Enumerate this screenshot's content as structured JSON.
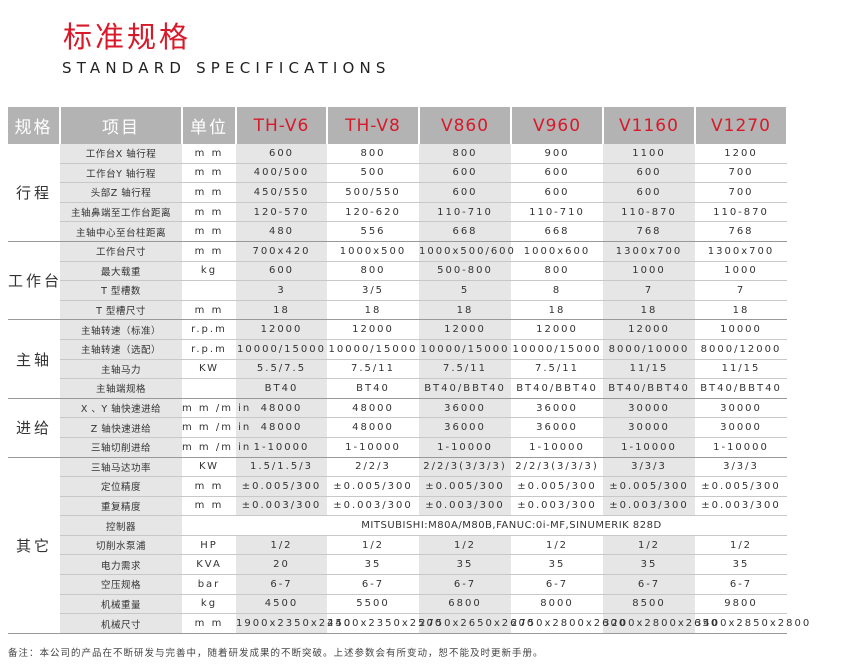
{
  "title": "标准规格",
  "subtitle": "STANDARD SPECIFICATIONS",
  "headers": {
    "group": "规格",
    "item": "项目",
    "unit": "单位",
    "models": [
      "TH-V6",
      "TH-V8",
      "V860",
      "V960",
      "V1160",
      "V1270"
    ]
  },
  "colors": {
    "accent": "#d7192a",
    "header_bg": "#b3b3b3",
    "shade": "#e6e6e6"
  },
  "groups": [
    {
      "name": "行程",
      "rows": [
        {
          "item": "工作台X 轴行程",
          "unit": "m m",
          "values": [
            "600",
            "800",
            "800",
            "900",
            "1100",
            "1200"
          ]
        },
        {
          "item": "工作台Y 轴行程",
          "unit": "m m",
          "values": [
            "400/500",
            "500",
            "600",
            "600",
            "600",
            "700"
          ]
        },
        {
          "item": "头部Z 轴行程",
          "unit": "m m",
          "values": [
            "450/550",
            "500/550",
            "600",
            "600",
            "600",
            "700"
          ]
        },
        {
          "item": "主轴鼻端至工作台距离",
          "unit": "m m",
          "values": [
            "120-570",
            "120-620",
            "110-710",
            "110-710",
            "110-870",
            "110-870"
          ]
        },
        {
          "item": "主轴中心至台柱距离",
          "unit": "m m",
          "values": [
            "480",
            "556",
            "668",
            "668",
            "768",
            "768"
          ]
        }
      ]
    },
    {
      "name": "工作台",
      "rows": [
        {
          "item": "工作台尺寸",
          "unit": "m m",
          "values": [
            "700x420",
            "1000x500",
            "1000x500/600",
            "1000x600",
            "1300x700",
            "1300x700"
          ]
        },
        {
          "item": "最大载重",
          "unit": "kg",
          "values": [
            "600",
            "800",
            "500-800",
            "800",
            "1000",
            "1000"
          ]
        },
        {
          "item": "T 型槽数",
          "unit": "",
          "values": [
            "3",
            "3/5",
            "5",
            "8",
            "7",
            "7"
          ]
        },
        {
          "item": "T 型槽尺寸",
          "unit": "m m",
          "values": [
            "18",
            "18",
            "18",
            "18",
            "18",
            "18"
          ]
        }
      ]
    },
    {
      "name": "主轴",
      "rows": [
        {
          "item": "主轴转速（标准）",
          "unit": "r.p.m",
          "values": [
            "12000",
            "12000",
            "12000",
            "12000",
            "12000",
            "10000"
          ]
        },
        {
          "item": "主轴转速（选配）",
          "unit": "r.p.m",
          "values": [
            "10000/15000",
            "10000/15000",
            "10000/15000",
            "10000/15000",
            "8000/10000",
            "8000/12000"
          ]
        },
        {
          "item": "主轴马力",
          "unit": "KW",
          "values": [
            "5.5/7.5",
            "7.5/11",
            "7.5/11",
            "7.5/11",
            "11/15",
            "11/15"
          ]
        },
        {
          "item": "主轴端规格",
          "unit": "",
          "values": [
            "BT40",
            "BT40",
            "BT40/BBT40",
            "BT40/BBT40",
            "BT40/BBT40",
            "BT40/BBT40"
          ]
        }
      ]
    },
    {
      "name": "进给",
      "rows": [
        {
          "item": "X 、Y 轴快速进给",
          "unit": "m m /m in",
          "values": [
            "48000",
            "48000",
            "36000",
            "36000",
            "30000",
            "30000"
          ]
        },
        {
          "item": "Z 轴快速进给",
          "unit": "m m /m in",
          "values": [
            "48000",
            "48000",
            "36000",
            "36000",
            "30000",
            "30000"
          ]
        },
        {
          "item": "三轴切削进给",
          "unit": "m m /m in",
          "values": [
            "1-10000",
            "1-10000",
            "1-10000",
            "1-10000",
            "1-10000",
            "1-10000"
          ]
        }
      ]
    },
    {
      "name": "其它",
      "rows": [
        {
          "item": "三轴马达功率",
          "unit": "KW",
          "values": [
            "1.5/1.5/3",
            "2/2/3",
            "2/2/3(3/3/3)",
            "2/2/3(3/3/3)",
            "3/3/3",
            "3/3/3"
          ]
        },
        {
          "item": "定位精度",
          "unit": "m m",
          "values": [
            "±0.005/300",
            "±0.005/300",
            "±0.005/300",
            "±0.005/300",
            "±0.005/300",
            "±0.005/300"
          ]
        },
        {
          "item": "重复精度",
          "unit": "m m",
          "values": [
            "±0.003/300",
            "±0.003/300",
            "±0.003/300",
            "±0.003/300",
            "±0.003/300",
            "±0.003/300"
          ]
        },
        {
          "item": "控制器",
          "unit": "",
          "span": "MITSUBISHI:M80A/M80B,FANUC:0i-MF,SINUMERIK 828D"
        },
        {
          "item": "切削水泵浦",
          "unit": "HP",
          "values": [
            "1/2",
            "1/2",
            "1/2",
            "1/2",
            "1/2",
            "1/2"
          ]
        },
        {
          "item": "电力需求",
          "unit": "KVA",
          "values": [
            "20",
            "35",
            "35",
            "35",
            "35",
            "35"
          ]
        },
        {
          "item": "空压规格",
          "unit": "bar",
          "values": [
            "6-7",
            "6-7",
            "6-7",
            "6-7",
            "6-7",
            "6-7"
          ]
        },
        {
          "item": "机械重量",
          "unit": "kg",
          "values": [
            "4500",
            "5500",
            "6800",
            "8000",
            "8500",
            "9800"
          ]
        },
        {
          "item": "机械尺寸",
          "unit": "m m",
          "values": [
            "1900x2350x2450",
            "2400x2350x2500",
            "2750x2650x2600",
            "2750x2800x2600",
            "3200x2800x2650",
            "3400x2850x2800"
          ]
        }
      ]
    }
  ],
  "note": "备注：本公司的产品在不断研发与完善中，随着研发成果的不断突破。上述参数会有所变动，恕不能及时更新手册。"
}
